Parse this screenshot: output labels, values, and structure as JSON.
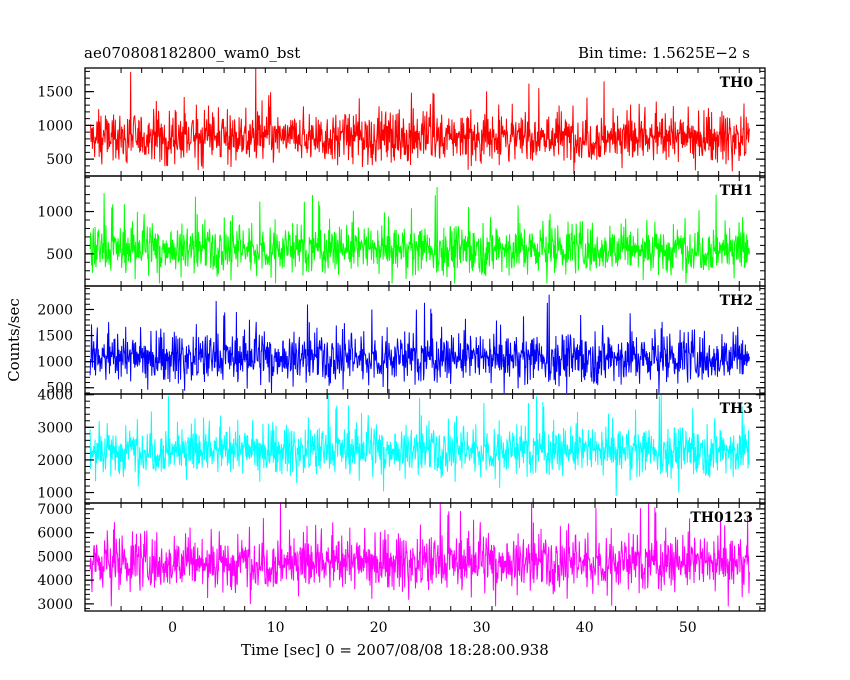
{
  "header": {
    "left_title": "ae070808182800_wam0_bst",
    "right_title": "Bin time: 1.5625E−2 s"
  },
  "axes": {
    "ylabel": "Counts/sec",
    "xlabel": "Time [sec] 0 = 2007/08/08 18:28:00.938"
  },
  "chart_data": {
    "type": "line",
    "title": "ae070808182800_wam0_bst",
    "xlabel": "Time [sec] 0 = 2007/08/08 18:28:00.938",
    "ylabel": "Counts/sec",
    "bin_time_s": 0.015625,
    "xlim": [
      -8.5,
      57.5
    ],
    "x_data_range": [
      -8.0,
      56.0
    ],
    "x_ticks": [
      0,
      10,
      20,
      30,
      40,
      50
    ],
    "panels": [
      {
        "name": "TH0",
        "color": "#ff0000",
        "ylim": [
          250,
          1850
        ],
        "yticks": [
          500,
          1000,
          1500
        ],
        "level": 820,
        "spread": 260,
        "min": 280,
        "max": 1850
      },
      {
        "name": "TH1",
        "color": "#00ff00",
        "ylim": [
          120,
          1420
        ],
        "yticks": [
          500,
          1000
        ],
        "level": 560,
        "spread": 200,
        "min": 150,
        "max": 1420
      },
      {
        "name": "TH2",
        "color": "#0000ff",
        "ylim": [
          380,
          2450
        ],
        "yticks": [
          500,
          1000,
          1500,
          2000
        ],
        "level": 1080,
        "spread": 330,
        "min": 400,
        "max": 2450
      },
      {
        "name": "TH3",
        "color": "#00ffff",
        "ylim": [
          680,
          4020
        ],
        "yticks": [
          1000,
          2000,
          3000,
          4000
        ],
        "level": 2300,
        "spread": 520,
        "min": 900,
        "max": 4020
      },
      {
        "name": "TH0123",
        "color": "#ff00ff",
        "ylim": [
          2700,
          7250
        ],
        "yticks": [
          3000,
          4000,
          5000,
          6000,
          7000
        ],
        "level": 4750,
        "spread": 820,
        "min": 2900,
        "max": 7250
      }
    ]
  }
}
